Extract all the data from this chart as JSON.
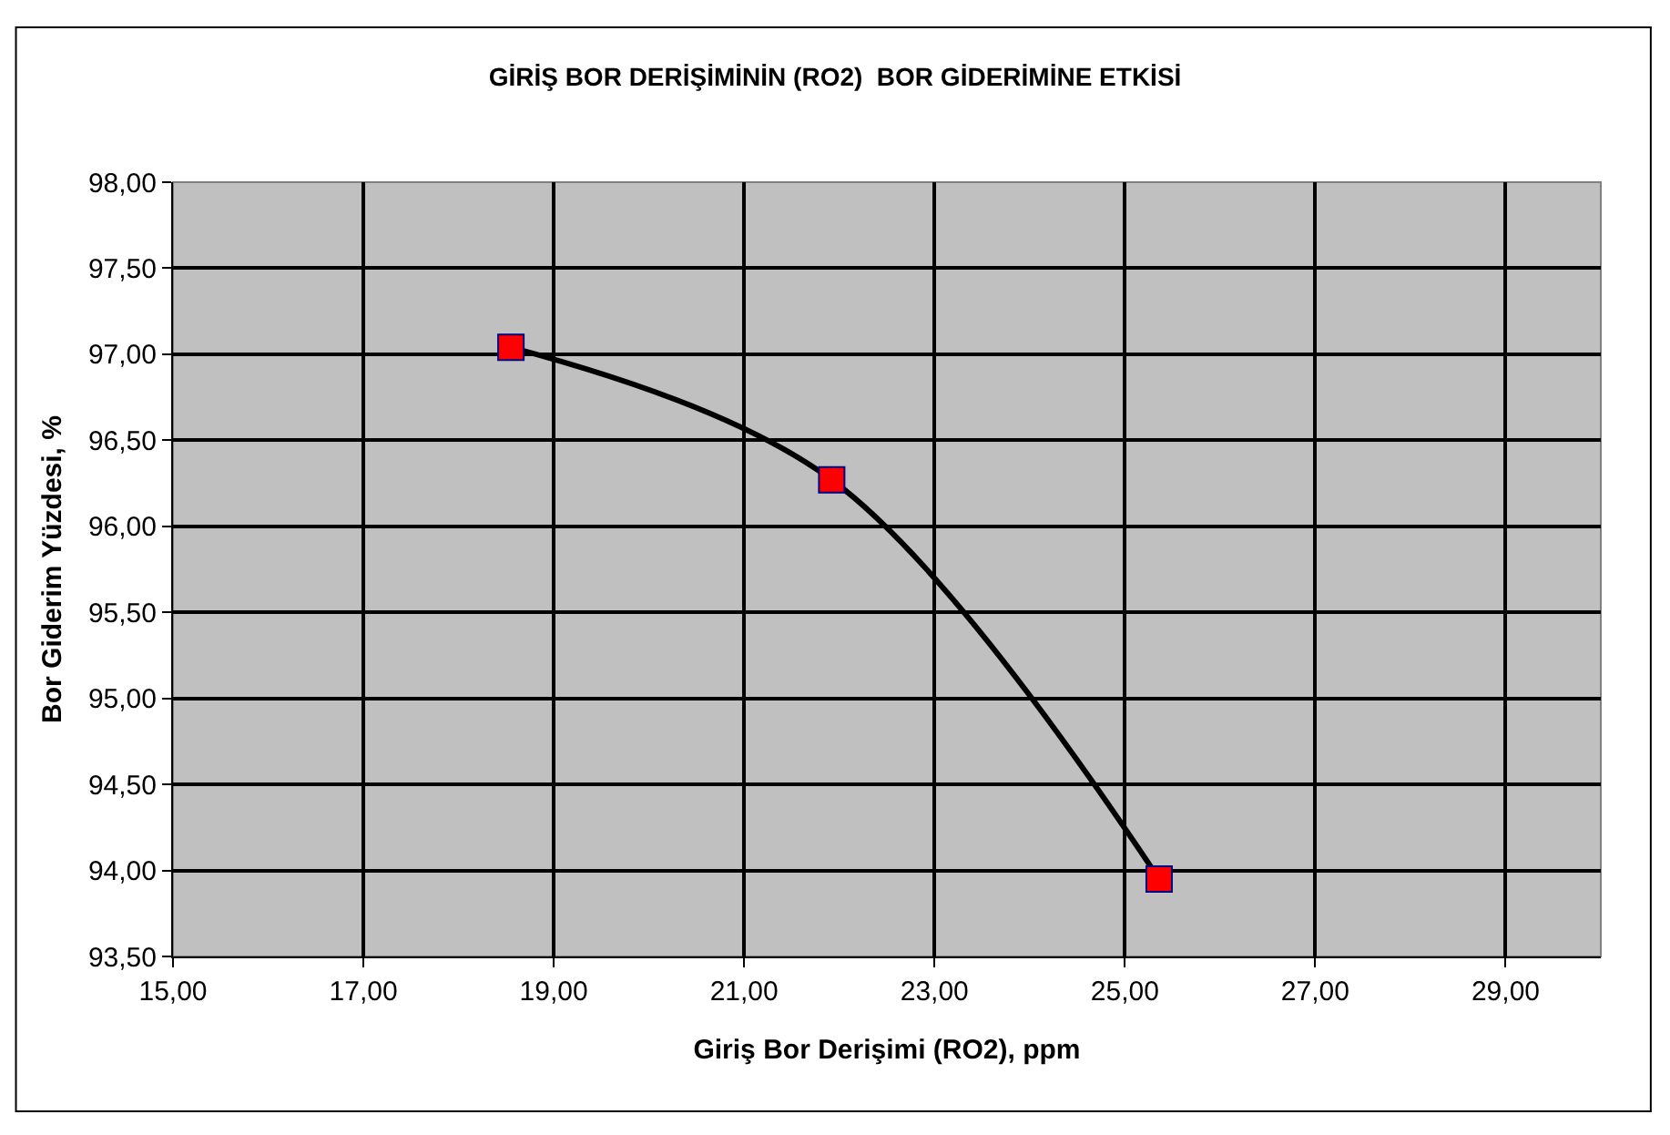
{
  "chart_data": {
    "type": "line",
    "title": "GİRİŞ BOR DERİŞİMİNİN (RO2)  BOR GİDERİMİNE ETKİSİ",
    "xlabel": "Giriş Bor Derişimi (RO2), ppm",
    "ylabel": "Bor Giderim Yüzdesi, %",
    "x": [
      18.55,
      21.92,
      25.36
    ],
    "series": [
      {
        "color": "#000000",
        "values": [
          97.04,
          96.27,
          93.95
        ]
      }
    ],
    "marker": "square",
    "line_style": "solid",
    "grid": true,
    "xlim": [
      15,
      30
    ],
    "ylim": [
      93.5,
      98
    ],
    "xticks": [
      {
        "value": 15,
        "label": "15,00"
      },
      {
        "value": 17,
        "label": "17,00"
      },
      {
        "value": 19,
        "label": "19,00"
      },
      {
        "value": 21,
        "label": "21,00"
      },
      {
        "value": 23,
        "label": "23,00"
      },
      {
        "value": 25,
        "label": "25,00"
      },
      {
        "value": 27,
        "label": "27,00"
      },
      {
        "value": 29,
        "label": "29,00"
      }
    ],
    "yticks": [
      {
        "value": 93.5,
        "label": "93,50"
      },
      {
        "value": 94,
        "label": "94,00"
      },
      {
        "value": 94.5,
        "label": "94,50"
      },
      {
        "value": 95,
        "label": "95,00"
      },
      {
        "value": 95.5,
        "label": "95,50"
      },
      {
        "value": 96,
        "label": "96,00"
      },
      {
        "value": 96.5,
        "label": "96,50"
      },
      {
        "value": 97,
        "label": "97,00"
      },
      {
        "value": 97.5,
        "label": "97,50"
      },
      {
        "value": 98,
        "label": "98,00"
      }
    ]
  }
}
